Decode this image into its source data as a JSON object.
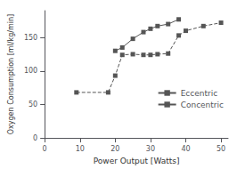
{
  "chart_data": {
    "type": "line",
    "xlabel": "Power Output [Watts]",
    "ylabel": "Oxygen Consumption [ml/kg/min]",
    "series": [
      {
        "name": "Eccentric",
        "color": "#555555",
        "marker": "square",
        "line_style": "solid",
        "x": [
          20,
          22,
          25,
          28,
          30,
          32,
          35,
          38
        ],
        "values": [
          130,
          135,
          148,
          158,
          163,
          167,
          170,
          177
        ]
      },
      {
        "name": "Concentric",
        "color": "#555555",
        "marker": "square",
        "line_style": "dashed",
        "x": [
          9,
          18,
          20,
          22,
          25,
          28,
          30,
          32,
          35,
          38,
          40,
          45,
          50
        ],
        "values": [
          68,
          68,
          93,
          124,
          125,
          124,
          124,
          125,
          126,
          153,
          160,
          167,
          172
        ]
      }
    ],
    "xlim": [
      0,
      52
    ],
    "ylim": [
      0,
      190
    ],
    "xticks": [
      0,
      10,
      20,
      30,
      40,
      50
    ],
    "yticks": [
      0,
      50,
      100,
      150
    ],
    "grid": false,
    "legend": "right"
  }
}
